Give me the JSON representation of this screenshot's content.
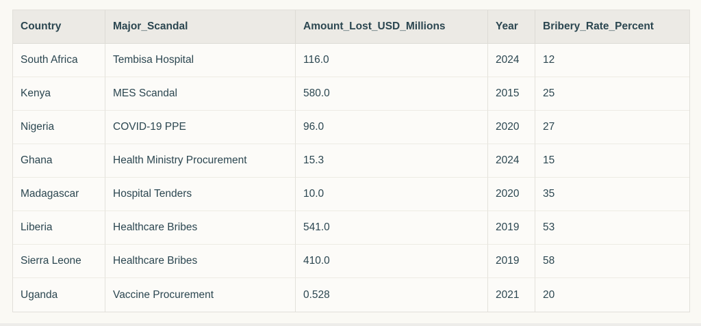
{
  "colors": {
    "page_background": "#faf9f4",
    "header_background": "#eceae5",
    "cell_background": "#fcfbf8",
    "border": "#e1dfd9",
    "text": "#2b4650"
  },
  "table": {
    "columns": [
      {
        "id": "country",
        "label": "Country"
      },
      {
        "id": "scandal",
        "label": "Major_Scandal"
      },
      {
        "id": "amount",
        "label": "Amount_Lost_USD_Millions"
      },
      {
        "id": "year",
        "label": "Year"
      },
      {
        "id": "bribery",
        "label": "Bribery_Rate_Percent"
      }
    ],
    "rows": [
      {
        "country": "South Africa",
        "scandal": "Tembisa Hospital",
        "amount": "116.0",
        "year": "2024",
        "bribery": "12"
      },
      {
        "country": "Kenya",
        "scandal": "MES Scandal",
        "amount": "580.0",
        "year": "2015",
        "bribery": "25"
      },
      {
        "country": "Nigeria",
        "scandal": "COVID-19 PPE",
        "amount": "96.0",
        "year": "2020",
        "bribery": "27"
      },
      {
        "country": "Ghana",
        "scandal": "Health Ministry Procurement",
        "amount": "15.3",
        "year": "2024",
        "bribery": "15"
      },
      {
        "country": "Madagascar",
        "scandal": "Hospital Tenders",
        "amount": "10.0",
        "year": "2020",
        "bribery": "35"
      },
      {
        "country": "Liberia",
        "scandal": "Healthcare Bribes",
        "amount": "541.0",
        "year": "2019",
        "bribery": "53"
      },
      {
        "country": "Sierra Leone",
        "scandal": "Healthcare Bribes",
        "amount": "410.0",
        "year": "2019",
        "bribery": "58"
      },
      {
        "country": "Uganda",
        "scandal": "Vaccine Procurement",
        "amount": "0.528",
        "year": "2021",
        "bribery": "20"
      }
    ]
  }
}
